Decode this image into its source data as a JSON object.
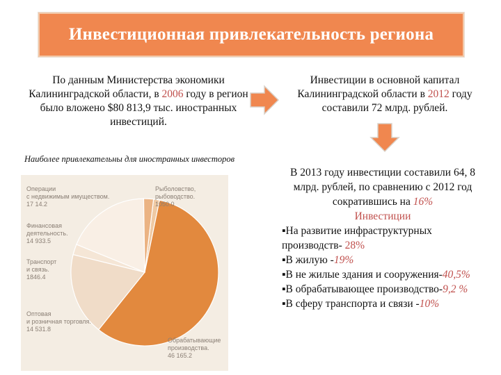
{
  "title": "Инвестиционная привлекательность региона",
  "left_paragraph": {
    "before": "По данным Министерства экономики Калининградской области, в ",
    "year": "2006",
    "after": " году в регион было вложено $80 813,9 тыс. иностранных инвестиций."
  },
  "right_paragraph": {
    "before": "Инвестиции в основной капитал Калининградской области в ",
    "year": "2012",
    "after": " году  составили 72 млрд. рублей."
  },
  "chart_caption": "Наиболее привлекательны для иностранных инвесторов",
  "chart_data": {
    "type": "pie",
    "slices": [
      {
        "label": "Рыболовство, рыбоводство.",
        "value": "1050.0",
        "color": "#efc9a3"
      },
      {
        "label": "Обрабатывающие производства.",
        "value": "46 165.2",
        "color": "#e2893e"
      },
      {
        "label": "Оптовая и розничная торговля.",
        "value": "14 531.8",
        "color": "#f0dcc8"
      },
      {
        "label": "Транспорт и связь.",
        "value": "1846.4",
        "color": "#f5e6d6"
      },
      {
        "label": "Финансовая деятельность.",
        "value": "14 933.5",
        "color": "#f9efe5"
      },
      {
        "label": "Операции с недвижимым имуществом.",
        "value": "17 14.2",
        "color": "#ebb383"
      }
    ]
  },
  "labels": {
    "realty_1": "Операции",
    "realty_2": "с недвижимым имуществом.",
    "realty_3": "17 14.2",
    "fish_1": "Рыболовство,",
    "fish_2": "рыбоводство.",
    "fish_3": "1050.0",
    "fin_1": "Финансовая",
    "fin_2": "деятельность.",
    "fin_3": "14 933.5",
    "trans_1": "Транспорт",
    "trans_2": "и связь.",
    "trans_3": "1846.4",
    "trade_1": "Оптовая",
    "trade_2": "и розничная торговля.",
    "trade_3": "14 531.8",
    "manuf_1": "Обрабатывающие",
    "manuf_2": "производства.",
    "manuf_3": "46 165.2"
  },
  "right_text": {
    "intro_before": "В 2013 году инвестиции составили 64, 8 млрд. рублей, по сравнению с 2012 год сократившись на ",
    "intro_pct": "16%",
    "heading": "Инвестиции",
    "items": [
      {
        "text": "На развитие инфраструктурных производств- ",
        "pct": "28%"
      },
      {
        "text": "В жилую -",
        "pct": "19%"
      },
      {
        "text": "В не жилые здания  и сооружения-",
        "pct": "40,5%"
      },
      {
        "text": "В обрабатывающее производство-",
        "pct": "9,2 %"
      },
      {
        "text": "В сферу транспорта и связи -",
        "pct": "10%"
      }
    ],
    "bullet": "▪"
  },
  "colors": {
    "banner": "#f0874f",
    "arrow": "#f0874f",
    "accent": "#c0504d"
  }
}
